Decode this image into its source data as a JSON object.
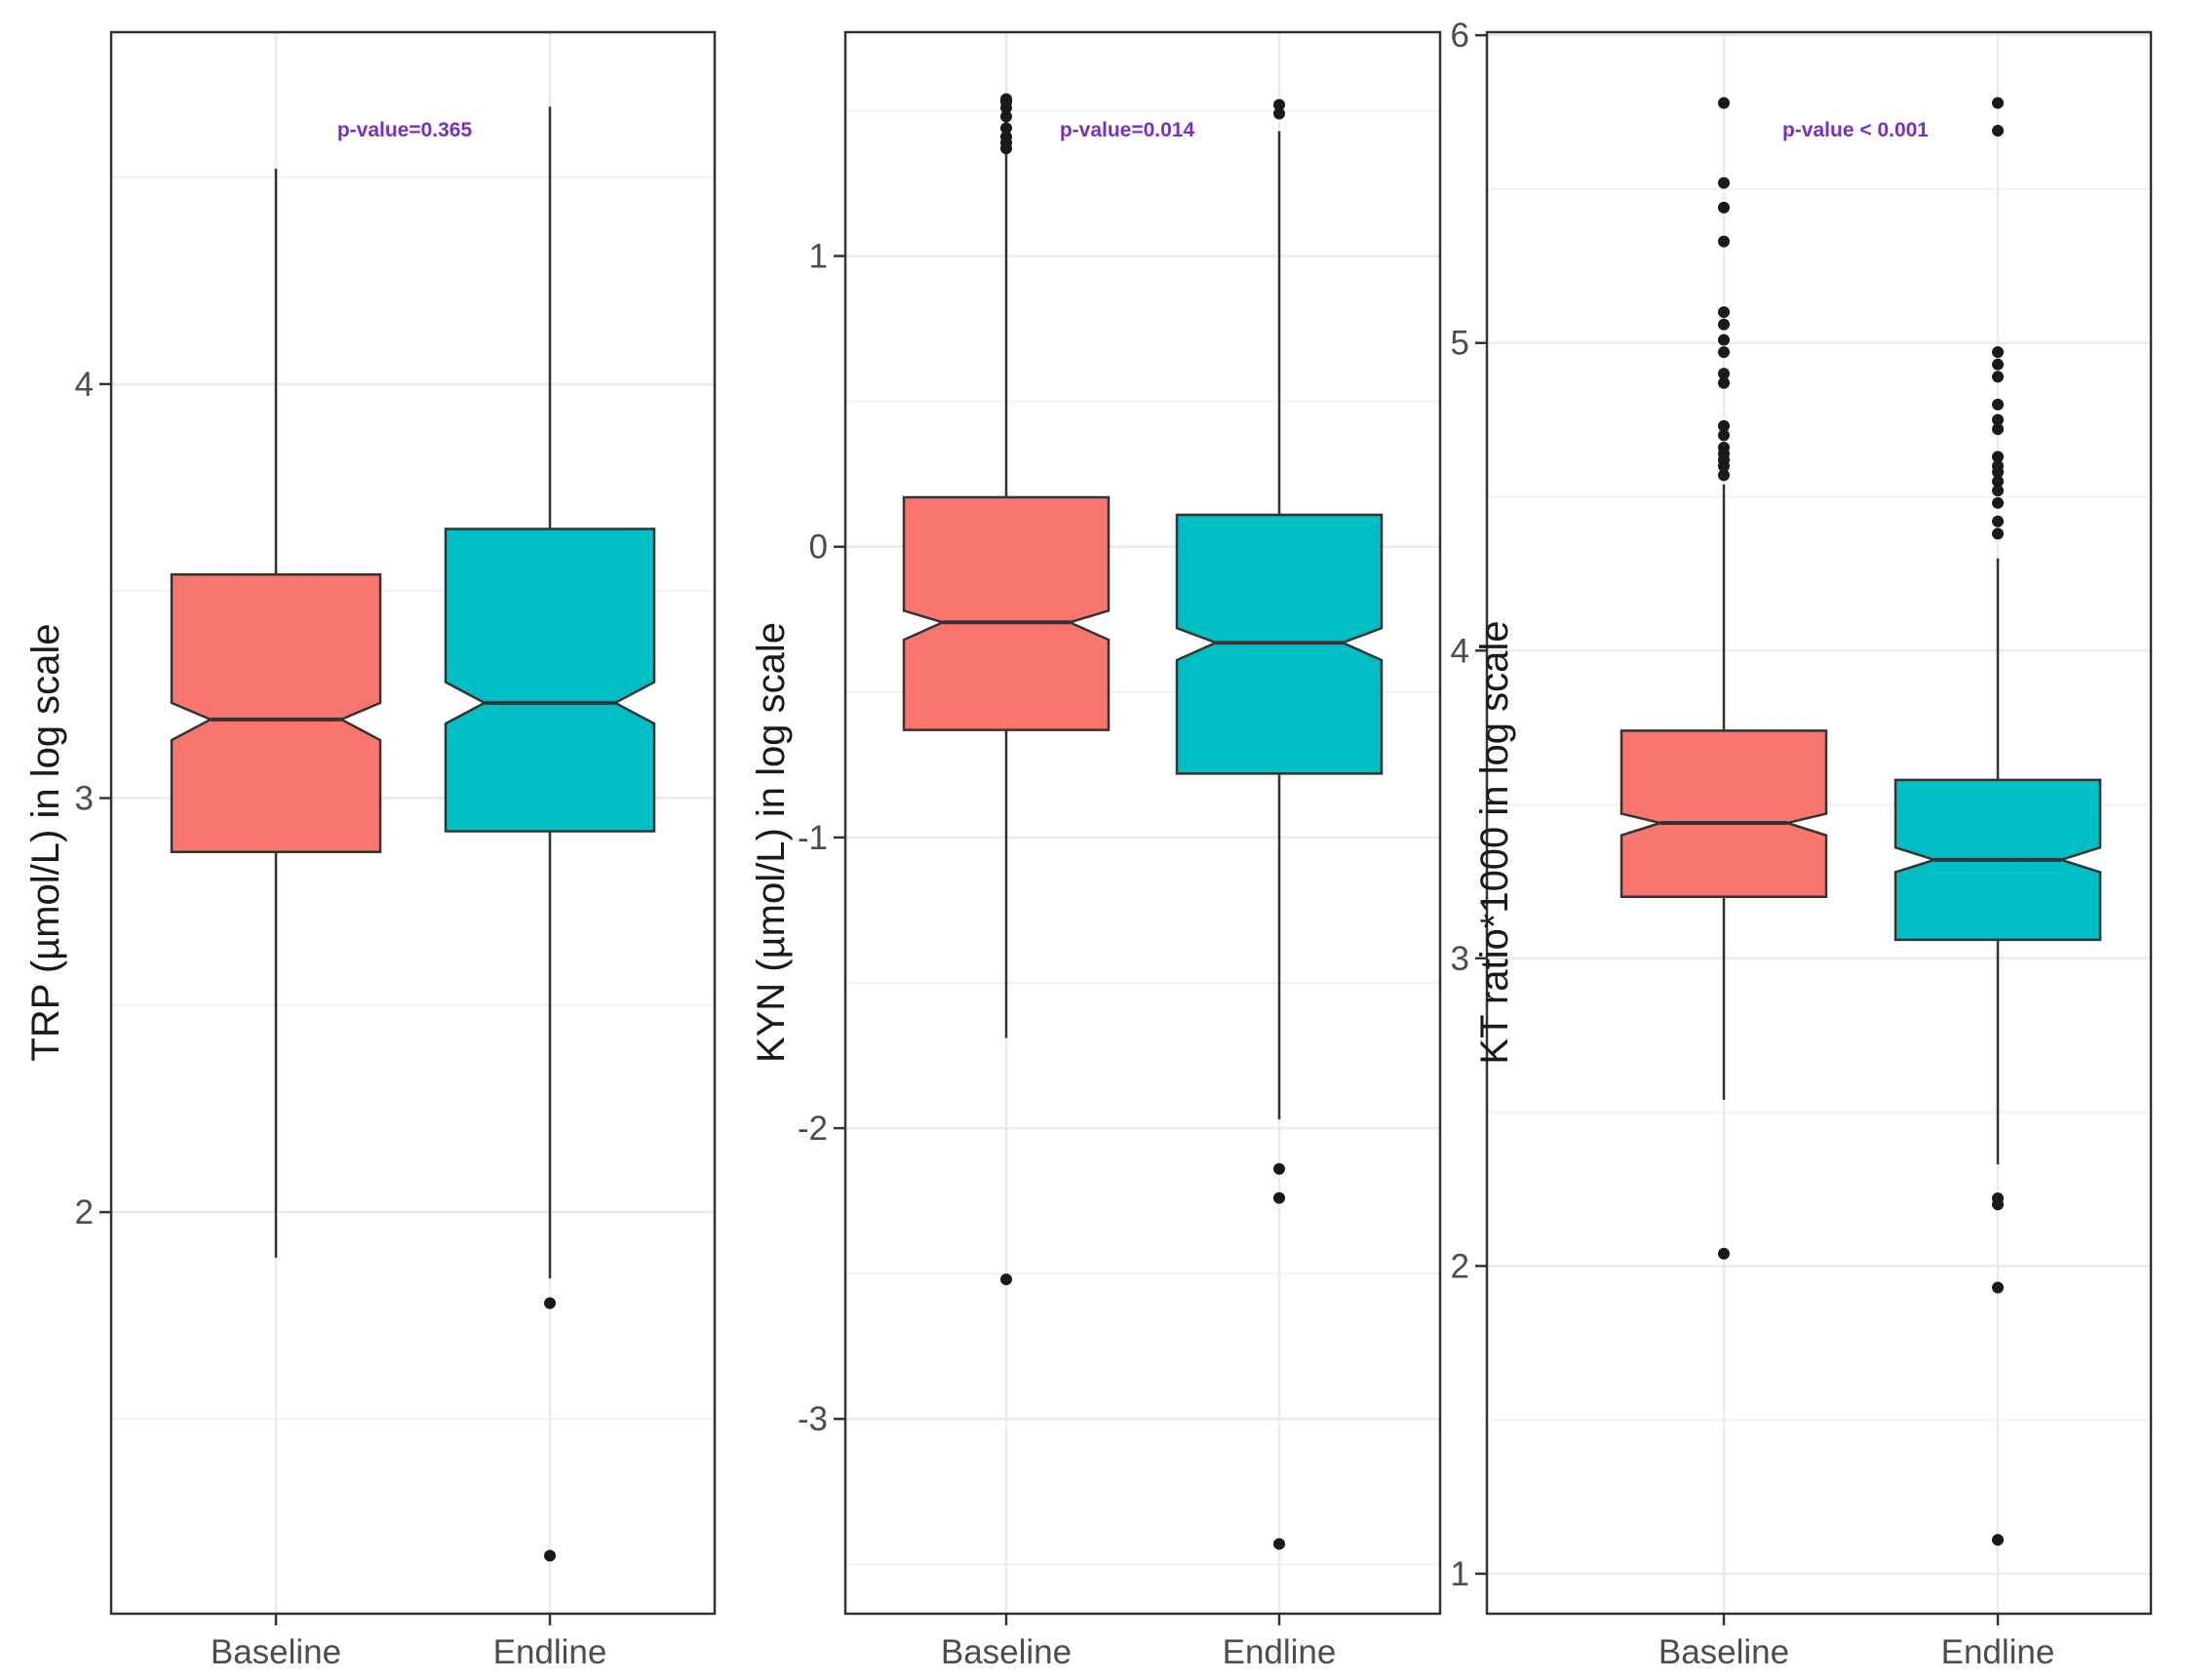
{
  "colors": {
    "baseline_fill": "#f8766d",
    "endline_fill": "#00bfc4",
    "pvalue_text": "#7b2fbe",
    "grid": "#ebebeb",
    "border": "#333333"
  },
  "chart_data": [
    {
      "type": "boxplot",
      "notched": true,
      "ylabel": "TRP (µmol/L) in log scale",
      "categories": [
        "Baseline",
        "Endline"
      ],
      "yticks": [
        2,
        3,
        4
      ],
      "ytick_labels": [
        "2",
        "3",
        "4"
      ],
      "ylim": [
        1.03,
        4.85
      ],
      "annotation": "p-value=0.365",
      "boxes": [
        {
          "name": "Baseline",
          "whisker_low": 1.89,
          "q1": 2.87,
          "notch_low": 3.14,
          "median": 3.19,
          "notch_high": 3.23,
          "q3": 3.54,
          "whisker_high": 4.52,
          "outliers": []
        },
        {
          "name": "Endline",
          "whisker_low": 1.84,
          "q1": 2.92,
          "notch_low": 3.18,
          "median": 3.23,
          "notch_high": 3.28,
          "q3": 3.65,
          "whisker_high": 4.67,
          "outliers": [
            1.78,
            1.17
          ]
        }
      ]
    },
    {
      "type": "boxplot",
      "notched": true,
      "ylabel": "KYN (µmol/L) in log scale",
      "categories": [
        "Baseline",
        "Endline"
      ],
      "yticks": [
        -3,
        -2,
        -1,
        0,
        1
      ],
      "ytick_labels": [
        "-3",
        "-2",
        "-1",
        "0",
        "1"
      ],
      "ylim": [
        -3.67,
        1.77
      ],
      "annotation": "p-value=0.014",
      "boxes": [
        {
          "name": "Baseline",
          "whisker_low": -1.69,
          "q1": -0.63,
          "notch_low": -0.32,
          "median": -0.26,
          "notch_high": -0.22,
          "q3": 0.17,
          "whisker_high": 1.36,
          "outliers": [
            -2.52,
            1.37,
            1.39,
            1.41,
            1.44,
            1.48,
            1.51,
            1.53,
            1.54
          ]
        },
        {
          "name": "Endline",
          "whisker_low": -1.97,
          "q1": -0.78,
          "notch_low": -0.39,
          "median": -0.33,
          "notch_high": -0.28,
          "q3": 0.11,
          "whisker_high": 1.43,
          "outliers": [
            -2.14,
            -2.24,
            -3.43,
            1.49,
            1.52
          ]
        }
      ]
    },
    {
      "type": "boxplot",
      "notched": true,
      "ylabel": "KT ratio*1000 in log scale",
      "categories": [
        "Baseline",
        "Endline"
      ],
      "yticks": [
        1,
        2,
        3,
        4,
        5,
        6
      ],
      "ytick_labels": [
        "1",
        "2",
        "3",
        "4",
        "5",
        "6"
      ],
      "ylim": [
        0.87,
        6.01
      ],
      "annotation": "p-value < 0.001",
      "boxes": [
        {
          "name": "Baseline",
          "whisker_low": 2.54,
          "q1": 3.2,
          "notch_low": 3.4,
          "median": 3.44,
          "notch_high": 3.47,
          "q3": 3.74,
          "whisker_high": 4.54,
          "outliers": [
            2.04,
            4.57,
            4.6,
            4.62,
            4.64,
            4.66,
            4.7,
            4.73,
            4.87,
            4.9,
            4.97,
            5.01,
            5.06,
            5.1,
            5.33,
            5.44,
            5.52,
            5.78
          ]
        },
        {
          "name": "Endline",
          "whisker_low": 2.33,
          "q1": 3.06,
          "notch_low": 3.28,
          "median": 3.32,
          "notch_high": 3.36,
          "q3": 3.58,
          "whisker_high": 4.3,
          "outliers": [
            1.11,
            1.93,
            2.2,
            2.22,
            4.38,
            4.42,
            4.48,
            4.52,
            4.55,
            4.58,
            4.6,
            4.63,
            4.72,
            4.75,
            4.8,
            4.89,
            4.93,
            4.97,
            5.69,
            5.78
          ]
        }
      ]
    }
  ]
}
